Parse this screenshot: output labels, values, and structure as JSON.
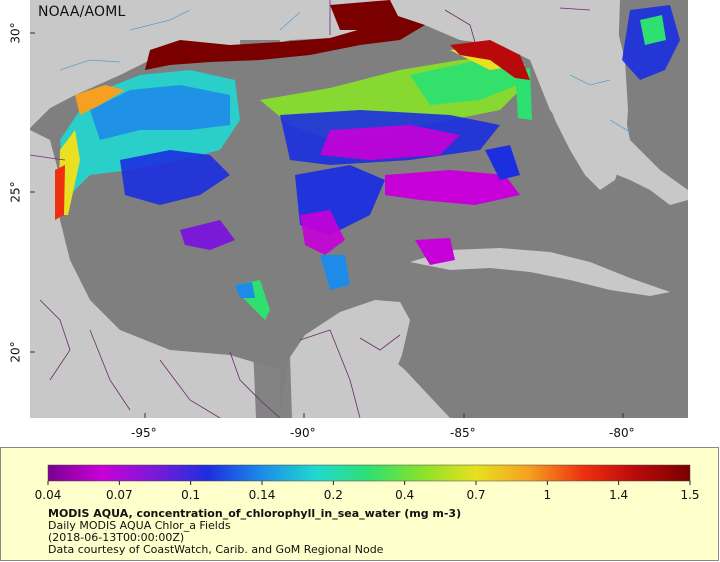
{
  "credit": "NOAA/AOML",
  "map": {
    "ocean_color": "#7f7f7f",
    "land_color": "#c8c8c8",
    "lon_ticks": [
      "-95°",
      "-90°",
      "-85°",
      "-80°"
    ],
    "lat_ticks": [
      "30°",
      "25°",
      "20°"
    ]
  },
  "legend": {
    "tick_labels": [
      "0.04",
      "0.07",
      "0.1",
      "0.14",
      "0.2",
      "0.4",
      "0.7",
      "1",
      "1.4",
      "1.5"
    ],
    "palette": [
      "#7a0090",
      "#c800d8",
      "#7a1ad8",
      "#1c2fe0",
      "#1e8be8",
      "#20d8d0",
      "#2ee070",
      "#8ae22a",
      "#e8e020",
      "#f5a020",
      "#ee3010",
      "#b80a0a",
      "#7a0000"
    ],
    "title": "MODIS AQUA, concentration_of_chlorophyll_in_sea_water (mg m-3)",
    "line1": "Daily MODIS AQUA Chlor_a Fields",
    "line2": "(2018-06-13T00:00:00Z)",
    "line3": "Data courtesy of CoastWatch, Carib. and GoM Regional Node"
  }
}
